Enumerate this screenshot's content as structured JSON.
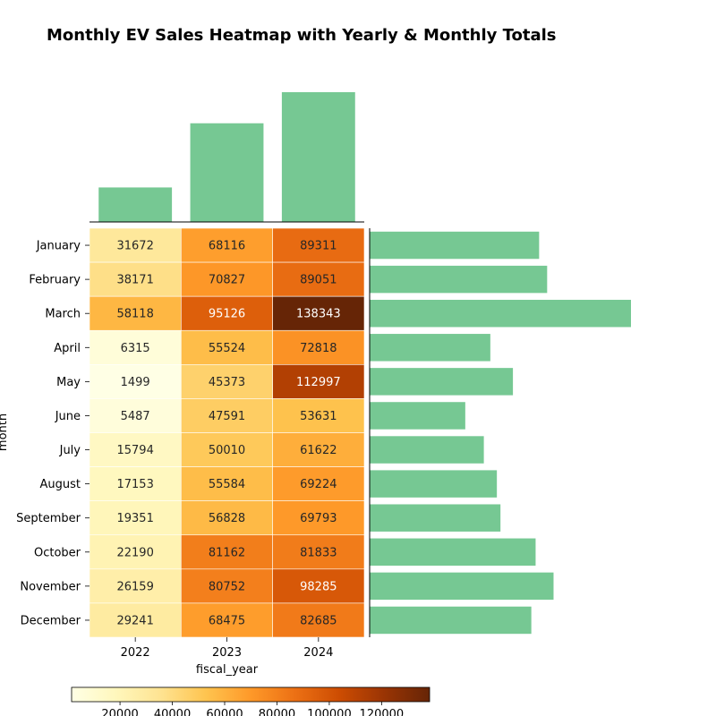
{
  "chart_data": {
    "type": "heatmap",
    "title": "Monthly EV Sales Heatmap with Yearly & Monthly Totals",
    "xlabel": "fiscal_year",
    "ylabel": "month",
    "x": [
      "2022",
      "2023",
      "2024"
    ],
    "y": [
      "January",
      "February",
      "March",
      "April",
      "May",
      "June",
      "July",
      "August",
      "September",
      "October",
      "November",
      "December"
    ],
    "values": [
      [
        31672,
        68116,
        89311
      ],
      [
        38171,
        70827,
        89051
      ],
      [
        58118,
        95126,
        138343
      ],
      [
        6315,
        55524,
        72818
      ],
      [
        1499,
        45373,
        112997
      ],
      [
        5487,
        47591,
        53631
      ],
      [
        15794,
        50010,
        61622
      ],
      [
        17153,
        55584,
        69224
      ],
      [
        19351,
        56828,
        69793
      ],
      [
        22190,
        81162,
        81833
      ],
      [
        26159,
        80752,
        98285
      ],
      [
        29241,
        68475,
        82685
      ]
    ],
    "colormap": "YlOrBr",
    "color_range": [
      1499,
      138343
    ],
    "colorbar_ticks": [
      "20000",
      "40000",
      "60000",
      "80000",
      "100000",
      "120000"
    ],
    "marginal_bar_color": "#76c893",
    "top_bars": "yearly totals (sum of each column)",
    "side_bars": "monthly totals (sum of each row)"
  }
}
